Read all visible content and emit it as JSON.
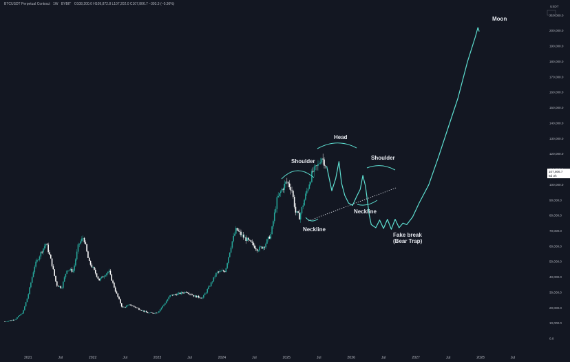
{
  "header": {
    "symbol": "BTCUSDT Perpetual Contract",
    "interval": "1W",
    "exchange": "BYBIT",
    "ohlc": "O108,200.0  H109,872.8  L107,202.0  C107,806.7  −393.3 (−0.36%)"
  },
  "currency": "USDT",
  "last_price": {
    "value": "107,806.7",
    "countdown": "6d 3h"
  },
  "colors": {
    "background": "#131722",
    "up": "#26a69a",
    "down": "#ffffff",
    "drawing": "#5ee0d2",
    "axis_text": "#b2b5be",
    "badge": "#ffffff"
  },
  "annotations": {
    "shoulder_left": "Shoulder",
    "head": "Head",
    "shoulder_right": "Shoulder",
    "neckline_1": "Neckline",
    "neckline_2": "Neckline",
    "fake_break_1": "Fake break",
    "fake_break_2": "(Bear Trap)",
    "moon": "Moon"
  },
  "chart_data": {
    "type": "candlestick",
    "title": "",
    "y_ticks": [
      0,
      10000,
      20000,
      30000,
      40000,
      50000,
      60000,
      70000,
      80000,
      90000,
      100000,
      110000,
      120000,
      130000,
      140000,
      150000,
      160000,
      170000,
      180000,
      190000,
      200000,
      210000
    ],
    "y_tick_labels": [
      "0.0",
      "10,000.0",
      "20,000.0",
      "30,000.0",
      "40,000.0",
      "50,000.0",
      "60,000.0",
      "70,000.0",
      "80,000.0",
      "90,000.0",
      "100,000.0",
      "110,000.0",
      "120,000.0",
      "130,000.0",
      "140,000.0",
      "150,000.0",
      "160,000.0",
      "170,000.0",
      "180,000.0",
      "190,000.0",
      "200,000.0",
      "210,000.0"
    ],
    "ylim": [
      0,
      215000
    ],
    "x_ticks": [
      {
        "label": "2021",
        "t": 2021.0
      },
      {
        "label": "Jul",
        "t": 2021.5
      },
      {
        "label": "2022",
        "t": 2022.0
      },
      {
        "label": "Jul",
        "t": 2022.5
      },
      {
        "label": "2023",
        "t": 2023.0
      },
      {
        "label": "Jul",
        "t": 2023.5
      },
      {
        "label": "2024",
        "t": 2024.0
      },
      {
        "label": "Jul",
        "t": 2024.5
      },
      {
        "label": "2025",
        "t": 2025.0
      },
      {
        "label": "Jul",
        "t": 2025.5
      },
      {
        "label": "2026",
        "t": 2026.0
      },
      {
        "label": "Jul",
        "t": 2026.5
      },
      {
        "label": "2027",
        "t": 2027.0
      },
      {
        "label": "Jul",
        "t": 2027.5
      },
      {
        "label": "2028",
        "t": 2028.0
      },
      {
        "label": "Jul",
        "t": 2028.5
      }
    ],
    "xlim": [
      2020.63,
      2028.98
    ],
    "price_path": [
      [
        2020.64,
        11000
      ],
      [
        2020.8,
        12500
      ],
      [
        2020.92,
        17000
      ],
      [
        2021.0,
        28000
      ],
      [
        2021.1,
        47000
      ],
      [
        2021.2,
        56000
      ],
      [
        2021.28,
        62000
      ],
      [
        2021.36,
        50000
      ],
      [
        2021.44,
        35000
      ],
      [
        2021.52,
        33000
      ],
      [
        2021.6,
        45000
      ],
      [
        2021.7,
        44000
      ],
      [
        2021.78,
        61000
      ],
      [
        2021.86,
        66000
      ],
      [
        2021.94,
        50000
      ],
      [
        2022.0,
        46000
      ],
      [
        2022.1,
        38000
      ],
      [
        2022.25,
        44000
      ],
      [
        2022.36,
        30000
      ],
      [
        2022.46,
        20000
      ],
      [
        2022.58,
        22000
      ],
      [
        2022.7,
        19500
      ],
      [
        2022.86,
        16500
      ],
      [
        2023.0,
        16800
      ],
      [
        2023.1,
        22000
      ],
      [
        2023.2,
        28000
      ],
      [
        2023.32,
        29000
      ],
      [
        2023.45,
        30500
      ],
      [
        2023.58,
        27500
      ],
      [
        2023.7,
        26500
      ],
      [
        2023.82,
        35000
      ],
      [
        2023.92,
        43000
      ],
      [
        2024.05,
        44000
      ],
      [
        2024.15,
        62000
      ],
      [
        2024.22,
        71000
      ],
      [
        2024.33,
        66000
      ],
      [
        2024.45,
        62000
      ],
      [
        2024.55,
        58000
      ],
      [
        2024.65,
        60000
      ],
      [
        2024.76,
        68000
      ],
      [
        2024.85,
        90000
      ],
      [
        2024.93,
        97000
      ],
      [
        2025.0,
        102000
      ],
      [
        2025.08,
        97000
      ],
      [
        2025.14,
        82000
      ],
      [
        2025.2,
        79000
      ],
      [
        2025.3,
        94000
      ],
      [
        2025.4,
        108000
      ],
      [
        2025.48,
        112000
      ],
      [
        2025.54,
        118000
      ],
      [
        2025.58,
        115000
      ],
      [
        2025.62,
        112000
      ]
    ],
    "projection_path": [
      [
        2025.62,
        112000
      ],
      [
        2025.7,
        96000
      ],
      [
        2025.76,
        104000
      ],
      [
        2025.81,
        115000
      ],
      [
        2025.85,
        101000
      ],
      [
        2025.9,
        93000
      ],
      [
        2025.96,
        88000
      ],
      [
        2026.02,
        86500
      ],
      [
        2026.08,
        92000
      ],
      [
        2026.14,
        97000
      ],
      [
        2026.18,
        106000
      ],
      [
        2026.22,
        99000
      ],
      [
        2026.28,
        80000
      ],
      [
        2026.31,
        74000
      ],
      [
        2026.38,
        72000
      ],
      [
        2026.44,
        77000
      ],
      [
        2026.5,
        71500
      ],
      [
        2026.56,
        77500
      ],
      [
        2026.62,
        71000
      ],
      [
        2026.68,
        77500
      ],
      [
        2026.74,
        72000
      ],
      [
        2026.8,
        75000
      ],
      [
        2026.86,
        74000
      ],
      [
        2026.95,
        79000
      ],
      [
        2027.05,
        88000
      ],
      [
        2027.2,
        100000
      ],
      [
        2027.35,
        118000
      ],
      [
        2027.5,
        137000
      ],
      [
        2027.65,
        156000
      ],
      [
        2027.8,
        180000
      ],
      [
        2027.92,
        196000
      ],
      [
        2027.96,
        202000
      ],
      [
        2027.98,
        199500
      ]
    ]
  }
}
